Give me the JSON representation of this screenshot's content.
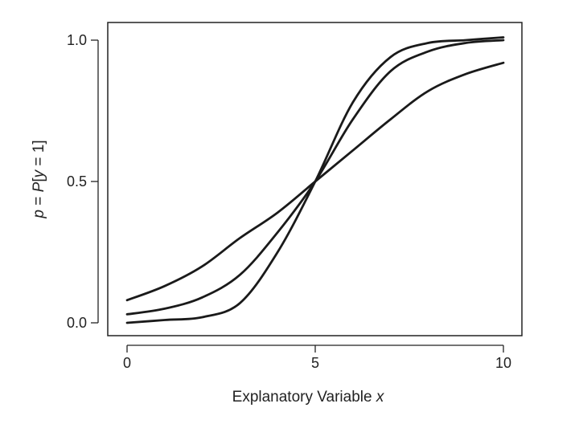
{
  "chart_data": {
    "type": "line",
    "xlabel": "Explanatory Variable",
    "xlabel_var": "x",
    "ylabel": {
      "p": "p",
      "eq1": " = ",
      "P": "P",
      "open": "[",
      "y": "y",
      "eq2": " = 1]"
    },
    "xlim": [
      0,
      10
    ],
    "ylim": [
      0,
      1
    ],
    "x_ticks": [
      0,
      5,
      10
    ],
    "x_tick_labels": [
      "0",
      "5",
      "10"
    ],
    "y_ticks": [
      0,
      0.5,
      1
    ],
    "y_tick_labels": [
      "0.0",
      "0.5",
      "1.0"
    ],
    "grid": false,
    "legend": false,
    "line_color": "#1a1a1a",
    "x": [
      0,
      1,
      2,
      3,
      4,
      5,
      6,
      7,
      8,
      9,
      10
    ],
    "series": [
      {
        "values": [
          0.08,
          0.13,
          0.2,
          0.3,
          0.39,
          0.5,
          0.61,
          0.72,
          0.82,
          0.88,
          0.92
        ]
      },
      {
        "values": [
          0.03,
          0.05,
          0.09,
          0.17,
          0.32,
          0.5,
          0.72,
          0.89,
          0.96,
          0.99,
          1.0
        ]
      },
      {
        "values": [
          0.0,
          0.01,
          0.02,
          0.07,
          0.25,
          0.5,
          0.78,
          0.94,
          0.99,
          1.0,
          1.01
        ]
      }
    ]
  }
}
